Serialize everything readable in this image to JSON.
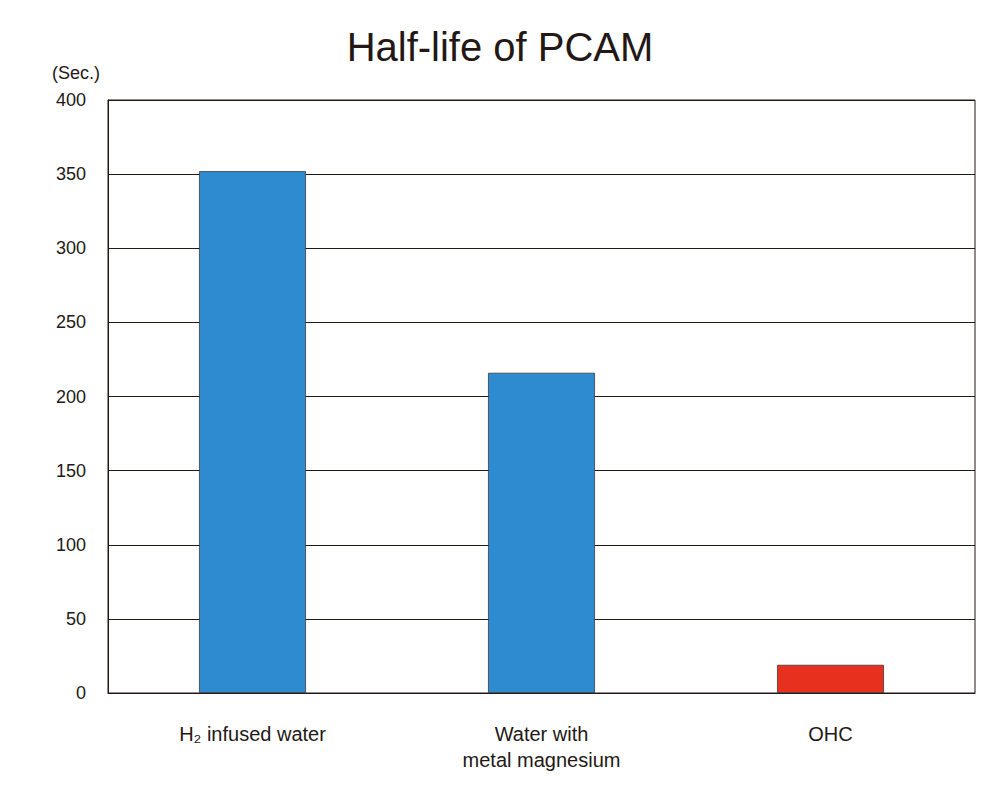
{
  "chart_data": {
    "type": "bar",
    "title": "Half-life of PCAM",
    "y_label": "(Sec.)",
    "categories": [
      "H₂ infused water",
      "Water with\nmetal magnesium",
      "OHC"
    ],
    "values": [
      352,
      216,
      19
    ],
    "colors": [
      "#2e8bcf",
      "#2e8bcf",
      "#e8301e"
    ],
    "ylim": [
      0,
      400
    ],
    "yticks": [
      0,
      50,
      100,
      150,
      200,
      250,
      300,
      350,
      400
    ],
    "grid": true
  }
}
